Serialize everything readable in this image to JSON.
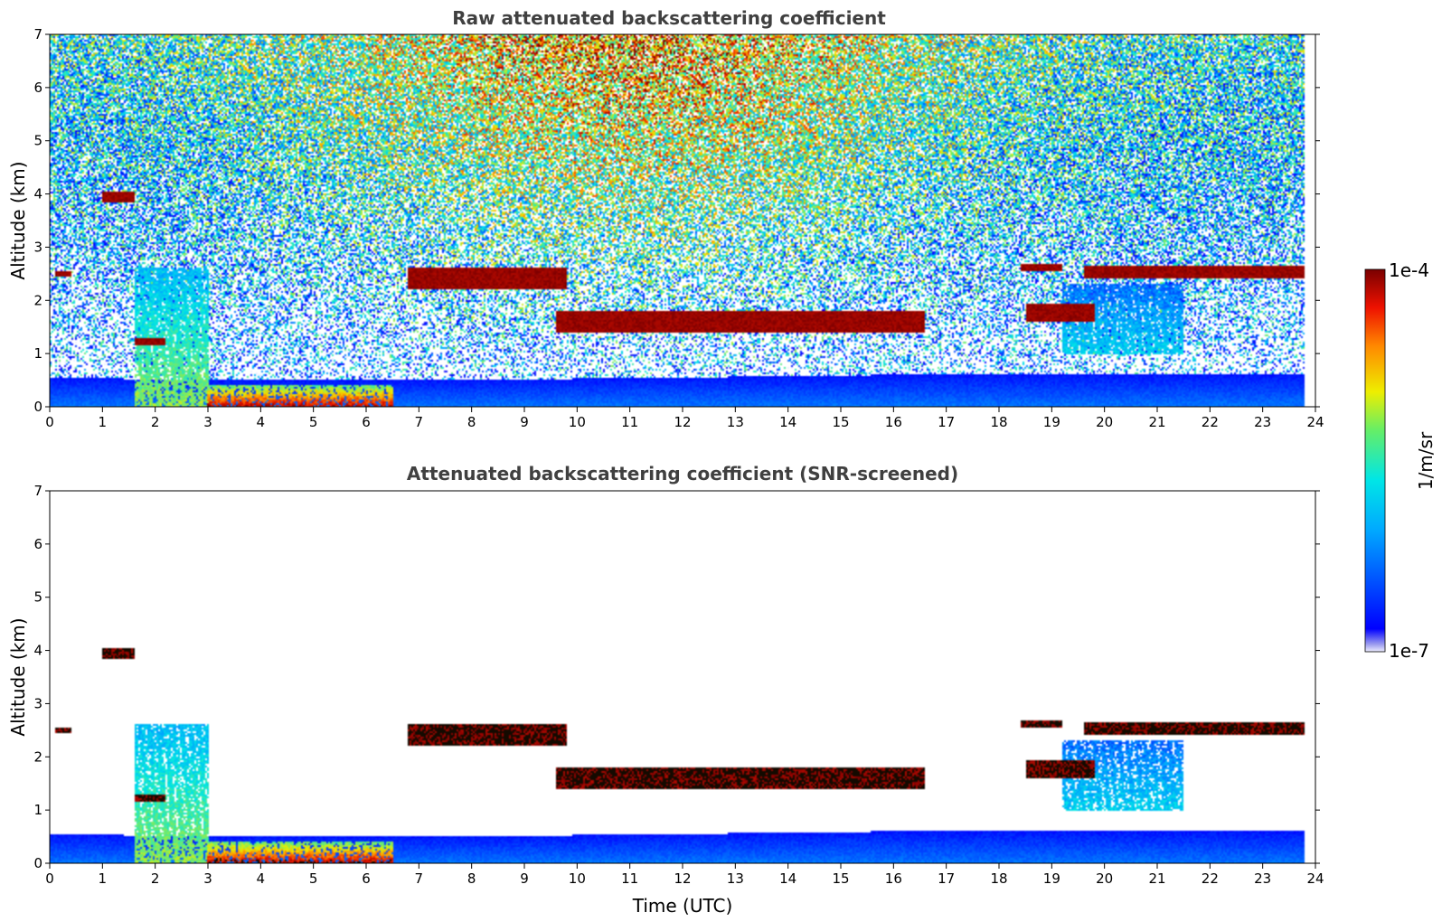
{
  "chart_data": [
    {
      "type": "heatmap",
      "title": "Raw attenuated backscattering coefficient",
      "xlabel": "",
      "ylabel": "Altitude (km)",
      "xlim": [
        0,
        24
      ],
      "ylim": [
        0,
        7
      ],
      "xticks": [
        "0",
        "1",
        "2",
        "3",
        "4",
        "5",
        "6",
        "7",
        "8",
        "9",
        "10",
        "11",
        "12",
        "13",
        "14",
        "15",
        "16",
        "17",
        "18",
        "19",
        "20",
        "21",
        "22",
        "23",
        "24"
      ],
      "yticks": [
        "0",
        "1",
        "2",
        "3",
        "4",
        "5",
        "6",
        "7"
      ],
      "data_end_time": 23.8,
      "screened": false,
      "features": {
        "surface_layer": [
          [
            0,
            0.55
          ],
          [
            3,
            0.5
          ],
          [
            7.5,
            0.5
          ],
          [
            12,
            0.55
          ],
          [
            16,
            0.6
          ],
          [
            20,
            0.6
          ],
          [
            23.8,
            0.6
          ]
        ],
        "cloud_layers": [
          {
            "t": [
              1.0,
              1.6
            ],
            "alt": [
              3.85,
              4.05
            ]
          },
          {
            "t": [
              0.1,
              0.4
            ],
            "alt": [
              2.45,
              2.55
            ]
          },
          {
            "t": [
              6.8,
              9.8
            ],
            "alt": [
              2.2,
              2.6
            ]
          },
          {
            "t": [
              9.6,
              16.6
            ],
            "alt": [
              1.4,
              1.8
            ]
          },
          {
            "t": [
              1.6,
              2.2
            ],
            "alt": [
              1.15,
              1.3
            ]
          },
          {
            "t": [
              18.5,
              19.8
            ],
            "alt": [
              1.6,
              1.95
            ]
          },
          {
            "t": [
              18.4,
              19.2
            ],
            "alt": [
              2.55,
              2.7
            ]
          },
          {
            "t": [
              19.6,
              23.8
            ],
            "alt": [
              2.4,
              2.65
            ]
          }
        ],
        "aerosol_plumes": [
          {
            "t": [
              1.6,
              3.0
            ],
            "alt": [
              0,
              2.6
            ],
            "level": 0.55
          },
          {
            "t": [
              3.0,
              6.5
            ],
            "alt": [
              0,
              0.4
            ],
            "level": 0.9
          },
          {
            "t": [
              19.2,
              21.5
            ],
            "alt": [
              1.0,
              2.3
            ],
            "level": 0.35
          }
        ]
      }
    },
    {
      "type": "heatmap",
      "title": "Attenuated backscattering coefficient (SNR-screened)",
      "xlabel": "Time (UTC)",
      "ylabel": "Altitude (km)",
      "xlim": [
        0,
        24
      ],
      "ylim": [
        0,
        7
      ],
      "xticks": [
        "0",
        "1",
        "2",
        "3",
        "4",
        "5",
        "6",
        "7",
        "8",
        "9",
        "10",
        "11",
        "12",
        "13",
        "14",
        "15",
        "16",
        "17",
        "18",
        "19",
        "20",
        "21",
        "22",
        "23",
        "24"
      ],
      "yticks": [
        "0",
        "1",
        "2",
        "3",
        "4",
        "5",
        "6",
        "7"
      ],
      "data_end_time": 23.8,
      "screened": true
    }
  ],
  "colorbar": {
    "label": "1/m/sr",
    "max_label": "1e-4",
    "min_label": "1e-7",
    "colormap": "jet",
    "scale": "log",
    "range": [
      1e-07,
      0.0001
    ]
  },
  "colors": {
    "title": "#404040",
    "frame": "#000000"
  }
}
